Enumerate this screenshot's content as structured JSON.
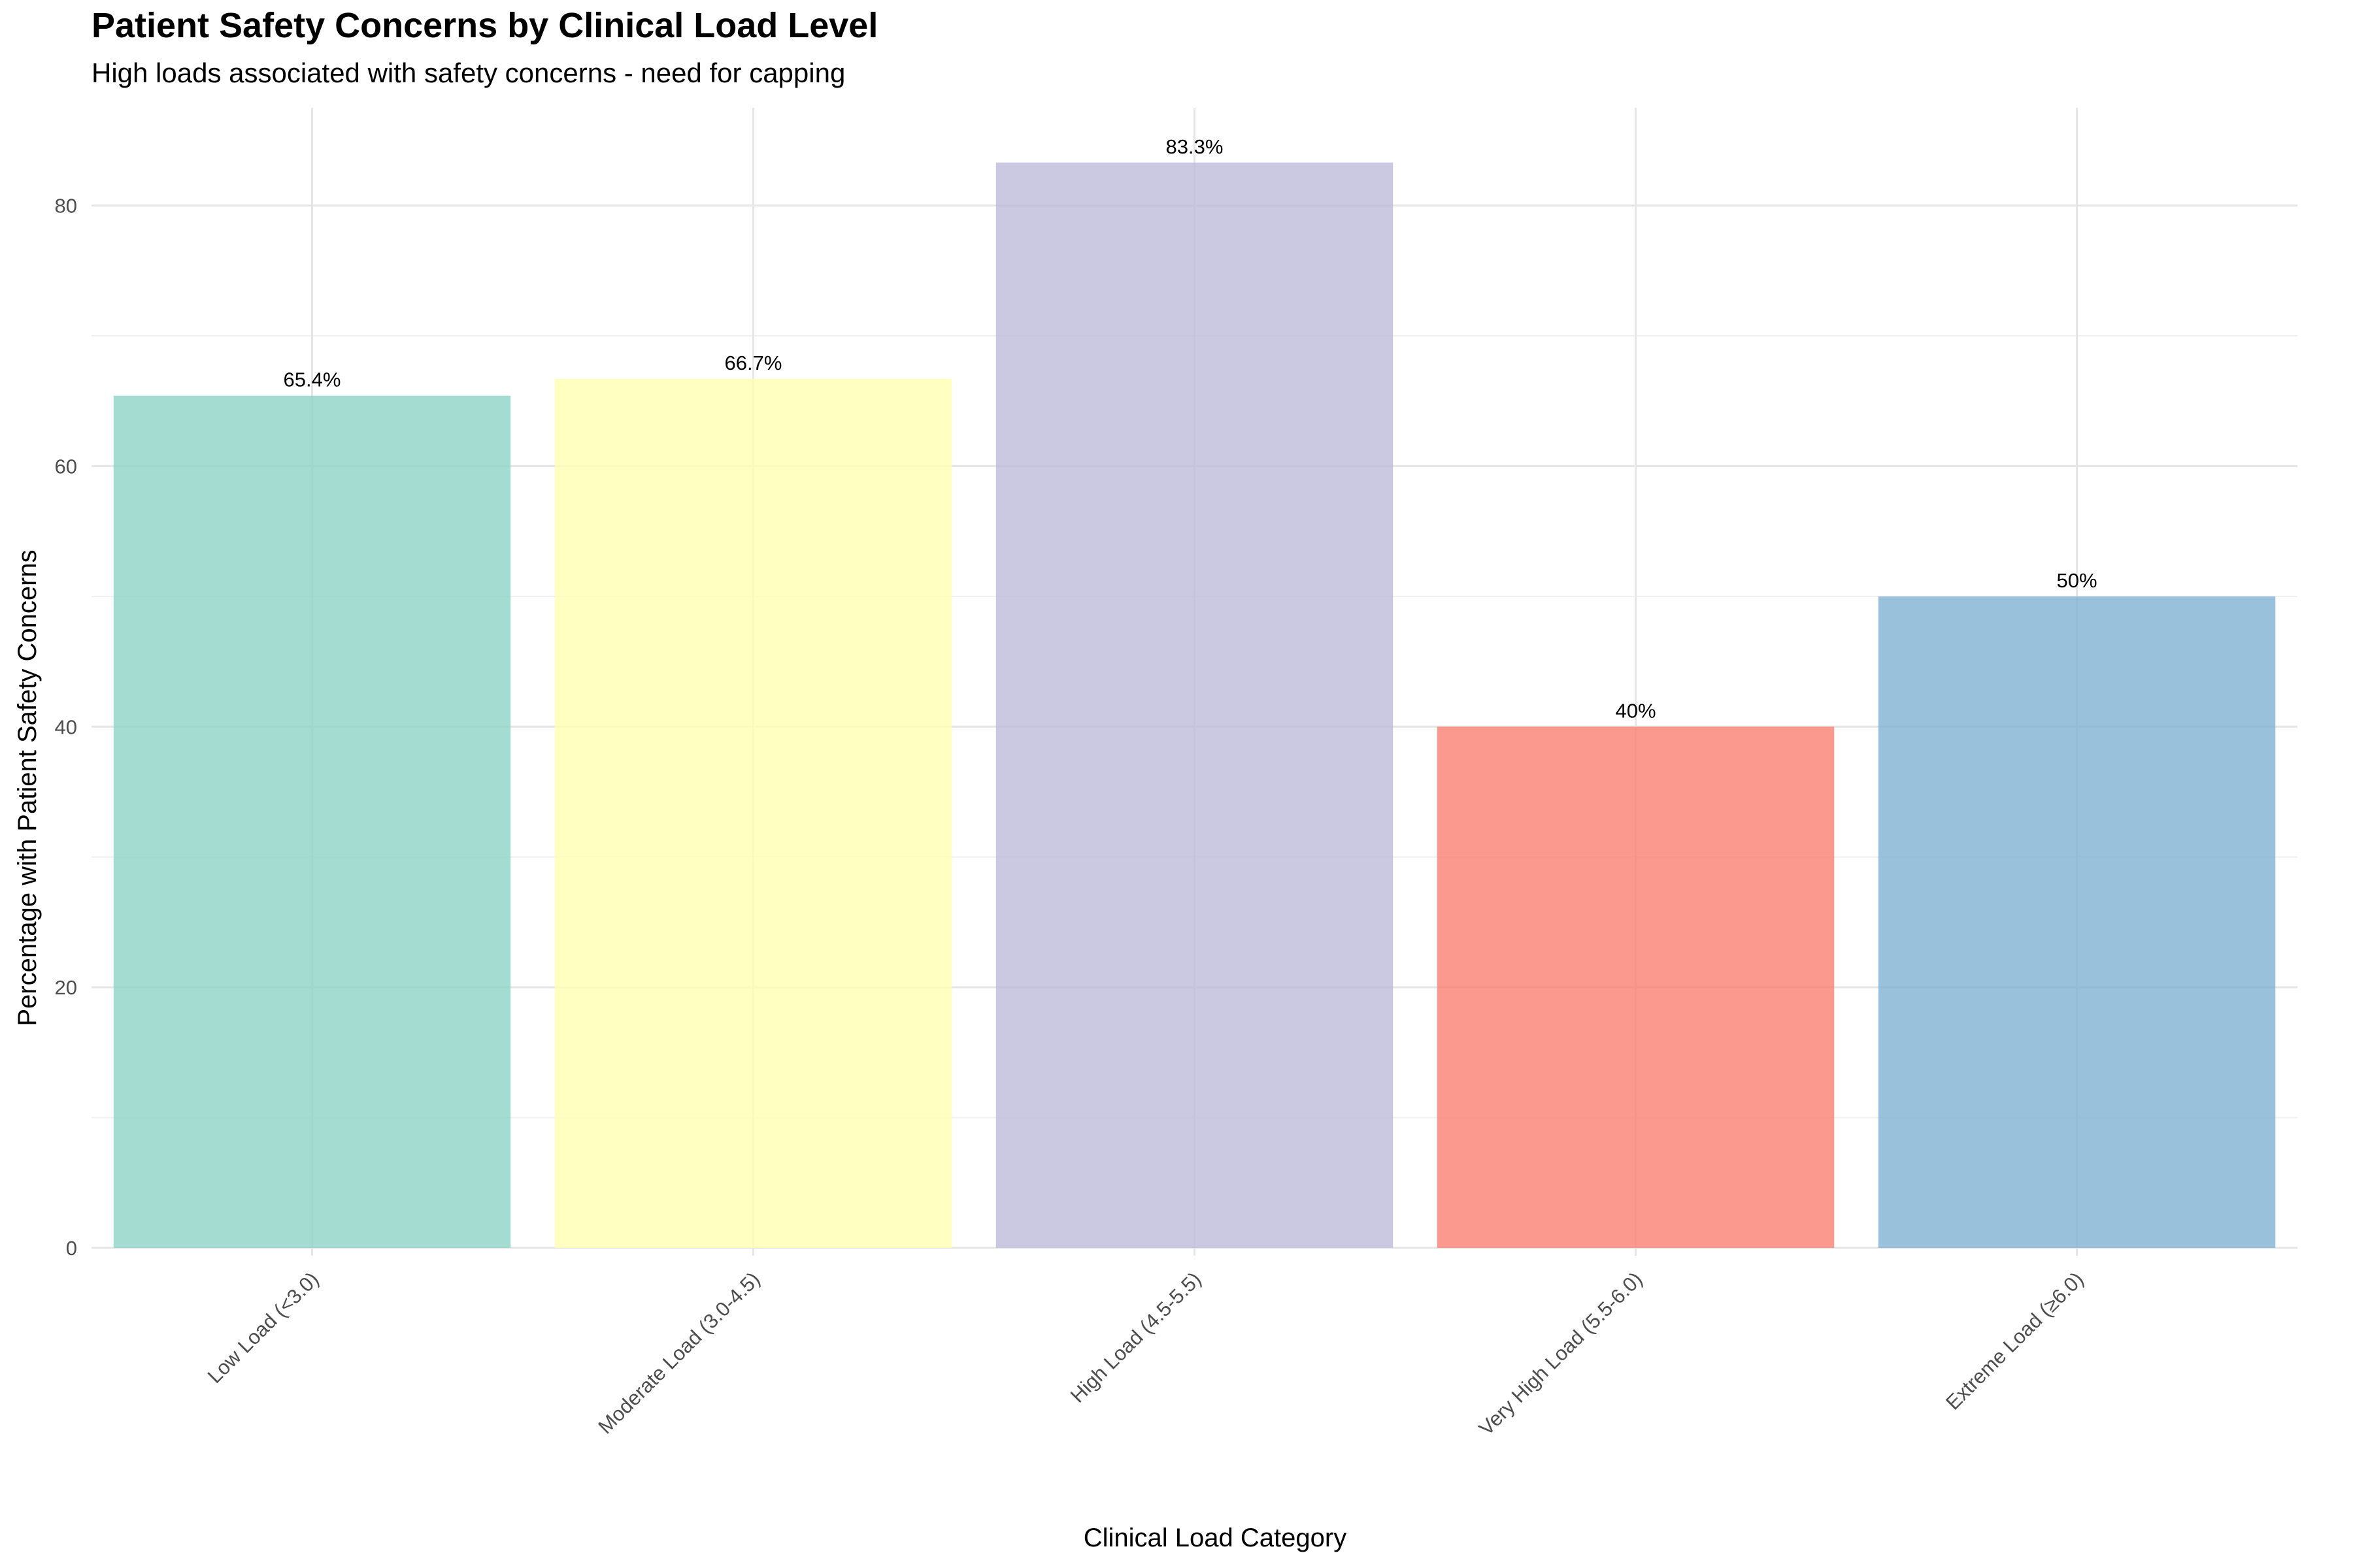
{
  "chart_data": {
    "type": "bar",
    "title": "Patient Safety Concerns by Clinical Load Level",
    "subtitle": "High loads associated with safety concerns - need for capping",
    "xlabel": "Clinical Load Category",
    "ylabel": "Percentage with Patient Safety Concerns",
    "categories": [
      "Low Load (<3.0)",
      "Moderate Load (3.0-4.5)",
      "High Load (4.5-5.5)",
      "Very High Load (5.5-6.0)",
      "Extreme Load (≥6.0)"
    ],
    "values": [
      65.4,
      66.7,
      83.3,
      40,
      50
    ],
    "data_labels": [
      "65.4%",
      "66.7%",
      "83.3%",
      "40%",
      "50%"
    ],
    "colors": [
      "#8DD3C7",
      "#FFFFB3",
      "#BEBADA",
      "#FB8072",
      "#80B1D3"
    ],
    "bar_opacity": 0.8,
    "ylim": [
      0,
      87.5
    ],
    "yticks": [
      0,
      20,
      40,
      60,
      80
    ],
    "grid": true,
    "legend": "none"
  }
}
